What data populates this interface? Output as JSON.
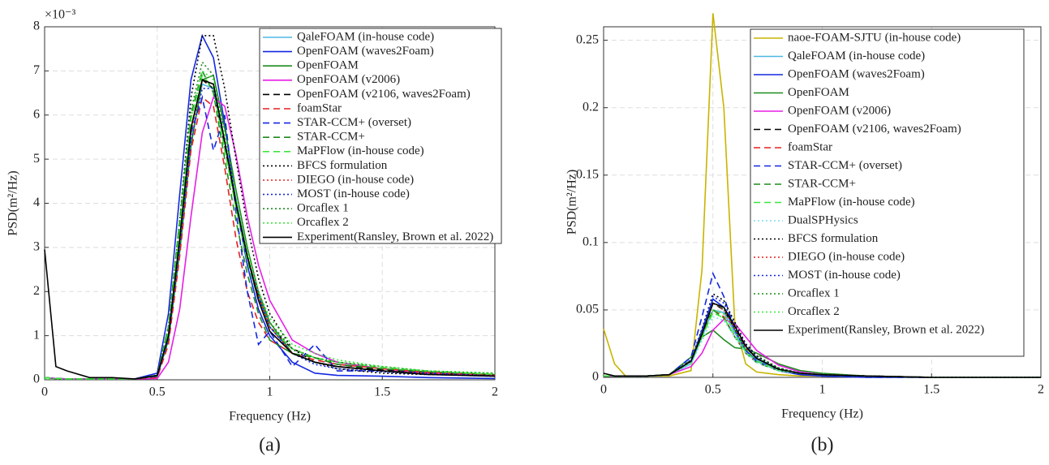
{
  "chart_data": [
    {
      "type": "line",
      "caption": "(a)",
      "x_label": "Frequency (Hz)",
      "y_label": "PSD(m²/Hz)",
      "y_multiplier": "×10⁻³",
      "xlim": [
        0,
        2
      ],
      "ylim": [
        0,
        8
      ],
      "xticks": [
        0,
        0.5,
        1,
        1.5,
        2
      ],
      "yticks": [
        0,
        1,
        2,
        3,
        4,
        5,
        6,
        7,
        8
      ],
      "grid": true,
      "legend_position": "northeast",
      "x": [
        0,
        0.05,
        0.1,
        0.2,
        0.3,
        0.4,
        0.5,
        0.55,
        0.6,
        0.65,
        0.7,
        0.75,
        0.8,
        0.85,
        0.9,
        0.95,
        1,
        1.1,
        1.2,
        1.3,
        1.5,
        1.7,
        2
      ],
      "series": [
        {
          "name": "QaleFOAM (in-house code)",
          "color": "#4fb8e6",
          "dash": "solid",
          "values": [
            0.05,
            0.03,
            0.02,
            0.02,
            0.02,
            0.02,
            0.1,
            1.0,
            3.0,
            5.4,
            6.7,
            6.6,
            5.4,
            4.1,
            2.8,
            1.9,
            1.2,
            0.6,
            0.4,
            0.3,
            0.2,
            0.15,
            0.1
          ]
        },
        {
          "name": "OpenFOAM (waves2Foam)",
          "color": "#1428e0",
          "dash": "solid",
          "values": [
            0.05,
            0.03,
            0.02,
            0.02,
            0.02,
            0.02,
            0.15,
            1.5,
            4.2,
            6.8,
            7.8,
            7.3,
            5.8,
            4.0,
            2.6,
            1.6,
            1.0,
            0.4,
            0.15,
            0.1,
            0.08,
            0.05,
            0.03
          ]
        },
        {
          "name": "OpenFOAM",
          "color": "#1e8c1e",
          "dash": "solid",
          "values": [
            0.05,
            0.03,
            0.02,
            0.02,
            0.02,
            0.02,
            0.08,
            0.9,
            2.9,
            5.3,
            6.8,
            6.9,
            5.7,
            4.3,
            3.0,
            2.0,
            1.3,
            0.6,
            0.4,
            0.3,
            0.2,
            0.15,
            0.1
          ]
        },
        {
          "name": "OpenFOAM (v2006)",
          "color": "#e61ee6",
          "dash": "solid",
          "values": [
            0.05,
            0.03,
            0.02,
            0.02,
            0.02,
            0.02,
            0.03,
            0.4,
            1.6,
            3.7,
            5.6,
            6.4,
            6.2,
            5.1,
            3.7,
            2.6,
            1.8,
            0.9,
            0.6,
            0.4,
            0.25,
            0.15,
            0.1
          ]
        },
        {
          "name": "OpenFOAM (v2106, waves2Foam)",
          "color": "#000000",
          "dash": "dashed",
          "values": [
            0.05,
            0.03,
            0.02,
            0.02,
            0.02,
            0.02,
            0.1,
            1.1,
            3.3,
            5.7,
            6.8,
            6.6,
            5.3,
            4.0,
            2.8,
            1.9,
            1.2,
            0.7,
            0.5,
            0.35,
            0.22,
            0.15,
            0.1
          ]
        },
        {
          "name": "foamStar",
          "color": "#e62020",
          "dash": "dashed",
          "values": [
            0.05,
            0.03,
            0.02,
            0.02,
            0.02,
            0.02,
            0.05,
            0.8,
            2.8,
            5.2,
            6.4,
            6.2,
            4.8,
            3.2,
            2.0,
            1.3,
            0.9,
            0.6,
            0.45,
            0.35,
            0.25,
            0.18,
            0.12
          ]
        },
        {
          "name": "STAR-CCM+ (overset)",
          "color": "#1428e0",
          "dash": "dashed",
          "values": [
            0.05,
            0.03,
            0.02,
            0.02,
            0.02,
            0.02,
            0.08,
            1.0,
            3.2,
            5.6,
            6.4,
            5.2,
            6.0,
            3.8,
            2.0,
            0.8,
            1.1,
            0.3,
            0.8,
            0.2,
            0.2,
            0.15,
            0.1
          ]
        },
        {
          "name": "STAR-CCM+",
          "color": "#1e8c1e",
          "dash": "dashed",
          "values": [
            0.05,
            0.03,
            0.02,
            0.02,
            0.02,
            0.02,
            0.1,
            1.2,
            3.6,
            6.0,
            7.0,
            6.5,
            5.0,
            3.6,
            2.4,
            1.5,
            0.9,
            0.6,
            0.5,
            0.35,
            0.25,
            0.18,
            0.12
          ]
        },
        {
          "name": "MaPFlow (in-house code)",
          "color": "#3ce63c",
          "dash": "dashed",
          "values": [
            0.05,
            0.03,
            0.02,
            0.02,
            0.02,
            0.02,
            0.1,
            1.1,
            3.4,
            5.9,
            6.9,
            6.6,
            5.2,
            3.9,
            2.7,
            1.8,
            1.2,
            0.7,
            0.5,
            0.4,
            0.28,
            0.2,
            0.12
          ]
        },
        {
          "name": "BFCS formulation",
          "color": "#000000",
          "dash": "dotted",
          "values": [
            0.02,
            0.02,
            0.02,
            0.02,
            0.02,
            0.02,
            0.1,
            1.2,
            3.6,
            6.4,
            7.8,
            7.8,
            6.6,
            5.0,
            3.5,
            2.3,
            1.5,
            0.7,
            0.4,
            0.25,
            0.15,
            0.12,
            0.1
          ]
        },
        {
          "name": "DIEGO (in-house code)",
          "color": "#e62020",
          "dash": "dotted",
          "values": [
            0.02,
            0.02,
            0.02,
            0.02,
            0.02,
            0.02,
            0.08,
            1.0,
            3.1,
            5.6,
            6.8,
            6.7,
            5.4,
            4.0,
            2.8,
            1.9,
            1.2,
            0.6,
            0.4,
            0.3,
            0.2,
            0.15,
            0.1
          ]
        },
        {
          "name": "MOST (in-house code)",
          "color": "#1428e0",
          "dash": "dotted",
          "values": [
            0.02,
            0.02,
            0.02,
            0.02,
            0.02,
            0.02,
            0.08,
            0.9,
            3.0,
            5.4,
            6.6,
            6.6,
            5.4,
            4.0,
            2.8,
            1.9,
            1.2,
            0.6,
            0.35,
            0.25,
            0.18,
            0.12,
            0.08
          ]
        },
        {
          "name": "Orcaflex 1",
          "color": "#1e8c1e",
          "dash": "dotted",
          "values": [
            0.02,
            0.02,
            0.02,
            0.02,
            0.02,
            0.02,
            0.1,
            1.2,
            3.6,
            6.1,
            7.2,
            6.9,
            5.5,
            4.1,
            2.9,
            2.0,
            1.3,
            0.7,
            0.5,
            0.4,
            0.3,
            0.2,
            0.15
          ]
        },
        {
          "name": "Orcaflex 2",
          "color": "#3ce63c",
          "dash": "dotted",
          "values": [
            0.02,
            0.02,
            0.02,
            0.02,
            0.02,
            0.02,
            0.1,
            1.1,
            3.4,
            5.9,
            7.0,
            6.8,
            5.5,
            4.1,
            2.9,
            2.0,
            1.4,
            0.8,
            0.6,
            0.45,
            0.3,
            0.2,
            0.15
          ]
        },
        {
          "name": "Experiment(Ransley, Brown et al. 2022)",
          "color": "#000000",
          "dash": "solid",
          "values": [
            2.95,
            0.3,
            0.2,
            0.05,
            0.05,
            0.02,
            0.1,
            1.0,
            3.2,
            5.7,
            6.8,
            6.7,
            5.4,
            4.0,
            2.8,
            1.8,
            1.1,
            0.6,
            0.4,
            0.3,
            0.2,
            0.12,
            0.08
          ]
        }
      ]
    },
    {
      "type": "line",
      "caption": "(b)",
      "x_label": "Frequency (Hz)",
      "y_label": "PSD(m²/Hz)",
      "xlim": [
        0,
        2
      ],
      "ylim": [
        0,
        0.26
      ],
      "xticks": [
        0,
        0.5,
        1,
        1.5,
        2
      ],
      "yticks": [
        0,
        0.05,
        0.1,
        0.15,
        0.2,
        0.25
      ],
      "grid": true,
      "legend_position": "northeast",
      "x": [
        0,
        0.05,
        0.1,
        0.2,
        0.3,
        0.4,
        0.45,
        0.5,
        0.55,
        0.6,
        0.65,
        0.7,
        0.8,
        0.9,
        1,
        1.2,
        1.5,
        2
      ],
      "series": [
        {
          "name": "naoe-FOAM-SJTU (in-house code)",
          "color": "#c8b400",
          "dash": "solid",
          "values": [
            0.036,
            0.01,
            0.001,
            0.001,
            0.001,
            0.005,
            0.08,
            0.27,
            0.2,
            0.04,
            0.01,
            0.004,
            0.002,
            0.001,
            0.001,
            0,
            0,
            0
          ]
        },
        {
          "name": "QaleFOAM (in-house code)",
          "color": "#4fb8e6",
          "dash": "solid",
          "values": [
            0.001,
            0.001,
            0.001,
            0.001,
            0.002,
            0.01,
            0.03,
            0.05,
            0.048,
            0.033,
            0.02,
            0.013,
            0.006,
            0.003,
            0.002,
            0.001,
            0,
            0
          ]
        },
        {
          "name": "OpenFOAM (waves2Foam)",
          "color": "#1428e0",
          "dash": "solid",
          "values": [
            0.001,
            0.001,
            0.001,
            0.001,
            0.002,
            0.012,
            0.035,
            0.058,
            0.052,
            0.035,
            0.02,
            0.012,
            0.005,
            0.002,
            0.001,
            0,
            0,
            0
          ]
        },
        {
          "name": "OpenFOAM",
          "color": "#1e8c1e",
          "dash": "solid",
          "values": [
            0.001,
            0.001,
            0.001,
            0.001,
            0.002,
            0.015,
            0.03,
            0.035,
            0.028,
            0.022,
            0.021,
            0.018,
            0.01,
            0.005,
            0.003,
            0.001,
            0,
            0
          ]
        },
        {
          "name": "OpenFOAM (v2006)",
          "color": "#e61ee6",
          "dash": "solid",
          "values": [
            0.001,
            0.001,
            0.001,
            0.001,
            0.002,
            0.008,
            0.018,
            0.035,
            0.043,
            0.04,
            0.03,
            0.02,
            0.009,
            0.004,
            0.002,
            0.001,
            0,
            0
          ]
        },
        {
          "name": "OpenFOAM (v2106, waves2Foam)",
          "color": "#000000",
          "dash": "dashed",
          "values": [
            0.001,
            0.001,
            0.001,
            0.001,
            0.002,
            0.012,
            0.032,
            0.055,
            0.05,
            0.036,
            0.022,
            0.014,
            0.006,
            0.003,
            0.002,
            0.001,
            0,
            0
          ]
        },
        {
          "name": "foamStar",
          "color": "#e62020",
          "dash": "dashed",
          "values": [
            0.001,
            0.001,
            0.001,
            0.001,
            0.002,
            0.012,
            0.03,
            0.05,
            0.045,
            0.03,
            0.018,
            0.011,
            0.005,
            0.003,
            0.002,
            0.001,
            0,
            0
          ]
        },
        {
          "name": "STAR-CCM+ (overset)",
          "color": "#1428e0",
          "dash": "dashed",
          "values": [
            0.001,
            0.001,
            0.001,
            0.001,
            0.002,
            0.015,
            0.045,
            0.077,
            0.06,
            0.035,
            0.02,
            0.012,
            0.005,
            0.002,
            0.001,
            0,
            0,
            0
          ]
        },
        {
          "name": "STAR-CCM+",
          "color": "#1e8c1e",
          "dash": "dashed",
          "values": [
            0.001,
            0.001,
            0.001,
            0.001,
            0.002,
            0.013,
            0.033,
            0.05,
            0.044,
            0.03,
            0.018,
            0.011,
            0.005,
            0.003,
            0.002,
            0.001,
            0,
            0
          ]
        },
        {
          "name": "MaPFlow (in-house code)",
          "color": "#3ce63c",
          "dash": "dashed",
          "values": [
            0.001,
            0.001,
            0.001,
            0.001,
            0.002,
            0.012,
            0.03,
            0.048,
            0.044,
            0.031,
            0.019,
            0.012,
            0.005,
            0.003,
            0.002,
            0.001,
            0,
            0
          ]
        },
        {
          "name": "DualSPHysics",
          "color": "#7fdcf0",
          "dash": "dotted",
          "values": [
            0.001,
            0.001,
            0.001,
            0.001,
            0.002,
            0.01,
            0.027,
            0.045,
            0.042,
            0.03,
            0.018,
            0.011,
            0.005,
            0.003,
            0.002,
            0.001,
            0,
            0
          ]
        },
        {
          "name": "BFCS formulation",
          "color": "#000000",
          "dash": "dotted",
          "values": [
            0.001,
            0.001,
            0.001,
            0.001,
            0.002,
            0.013,
            0.036,
            0.062,
            0.057,
            0.041,
            0.025,
            0.016,
            0.007,
            0.003,
            0.002,
            0.001,
            0,
            0
          ]
        },
        {
          "name": "DIEGO (in-house code)",
          "color": "#e62020",
          "dash": "dotted",
          "values": [
            0.001,
            0.001,
            0.001,
            0.001,
            0.002,
            0.012,
            0.032,
            0.055,
            0.05,
            0.036,
            0.022,
            0.014,
            0.006,
            0.003,
            0.002,
            0.001,
            0,
            0
          ]
        },
        {
          "name": "MOST (in-house code)",
          "color": "#1428e0",
          "dash": "dotted",
          "values": [
            0.001,
            0.001,
            0.001,
            0.001,
            0.002,
            0.013,
            0.035,
            0.06,
            0.055,
            0.039,
            0.024,
            0.015,
            0.006,
            0.003,
            0.002,
            0.001,
            0,
            0
          ]
        },
        {
          "name": "Orcaflex 1",
          "color": "#1e8c1e",
          "dash": "dotted",
          "values": [
            0.001,
            0.001,
            0.001,
            0.001,
            0.002,
            0.012,
            0.032,
            0.055,
            0.051,
            0.037,
            0.023,
            0.015,
            0.007,
            0.003,
            0.002,
            0.001,
            0,
            0
          ]
        },
        {
          "name": "Orcaflex 2",
          "color": "#3ce63c",
          "dash": "dotted",
          "values": [
            0.001,
            0.001,
            0.001,
            0.001,
            0.002,
            0.011,
            0.03,
            0.05,
            0.047,
            0.034,
            0.021,
            0.014,
            0.006,
            0.003,
            0.002,
            0.001,
            0,
            0
          ]
        },
        {
          "name": "Experiment(Ransley, Brown et al. 2022)",
          "color": "#000000",
          "dash": "solid",
          "values": [
            0.003,
            0.001,
            0.001,
            0.001,
            0.002,
            0.012,
            0.032,
            0.055,
            0.052,
            0.038,
            0.023,
            0.014,
            0.006,
            0.003,
            0.002,
            0.001,
            0,
            0
          ]
        }
      ]
    }
  ]
}
